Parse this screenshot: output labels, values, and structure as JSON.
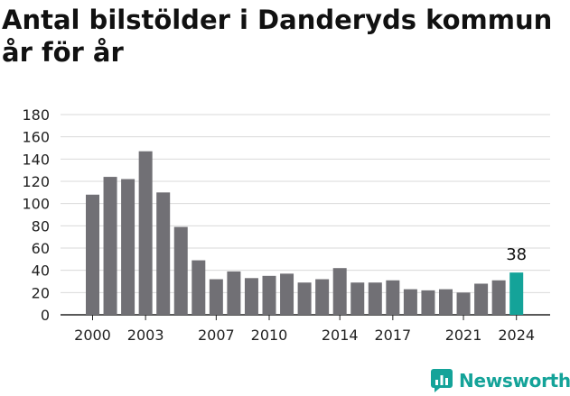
{
  "chart_data": {
    "type": "bar",
    "title": "Antal bilstölder i Danderyds kommun år för år",
    "xlabel": "",
    "ylabel": "",
    "categories": [
      "2000",
      "2001",
      "2002",
      "2003",
      "2004",
      "2005",
      "2006",
      "2007",
      "2008",
      "2009",
      "2010",
      "2011",
      "2012",
      "2013",
      "2014",
      "2015",
      "2016",
      "2017",
      "2018",
      "2019",
      "2020",
      "2021",
      "2022",
      "2023",
      "2024"
    ],
    "values": [
      108,
      124,
      122,
      147,
      110,
      79,
      49,
      32,
      39,
      33,
      35,
      37,
      29,
      32,
      42,
      29,
      29,
      31,
      23,
      22,
      23,
      20,
      28,
      31,
      38
    ],
    "x_tick_labels": [
      "2000",
      "2003",
      "2007",
      "2010",
      "2014",
      "2017",
      "2021",
      "2024"
    ],
    "y_ticks": [
      0,
      20,
      40,
      60,
      80,
      100,
      120,
      140,
      160,
      180
    ],
    "ylim": [
      0,
      180
    ],
    "grid": "horizontal",
    "data_labels": [
      {
        "category": "2024",
        "text": "38"
      }
    ],
    "colors": {
      "bar": "#717075",
      "highlight": "#14a399",
      "grid": "#d9d9d9",
      "axis": "#222222"
    }
  },
  "branding": {
    "logo_text": "Newsworthy",
    "color": "#14a399"
  }
}
